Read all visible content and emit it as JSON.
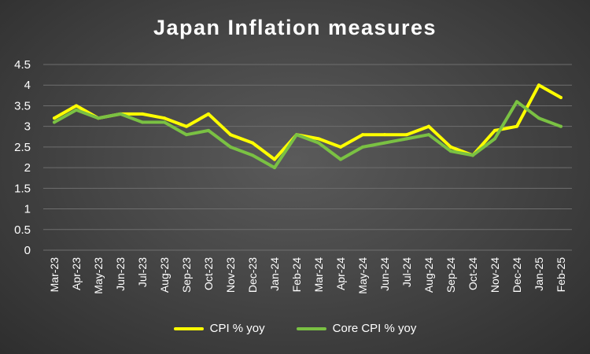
{
  "chart_data": {
    "type": "line",
    "title": "Japan Inflation measures",
    "xlabel": "",
    "ylabel": "",
    "ylim": [
      0,
      4.5
    ],
    "yticks": [
      "0",
      "0.5",
      "1",
      "1.5",
      "2",
      "2.5",
      "3",
      "3.5",
      "4",
      "4.5"
    ],
    "grid": true,
    "legend_position": "bottom",
    "categories": [
      "Mar-23",
      "Apr-23",
      "May-23",
      "Jun-23",
      "Jul-23",
      "Aug-23",
      "Sep-23",
      "Oct-23",
      "Nov-23",
      "Dec-23",
      "Jan-24",
      "Feb-24",
      "Mar-24",
      "Apr-24",
      "May-24",
      "Jun-24",
      "Jul-24",
      "Aug-24",
      "Sep-24",
      "Oct-24",
      "Nov-24",
      "Dec-24",
      "Jan-25",
      "Feb-25"
    ],
    "series": [
      {
        "name": "CPI % yoy",
        "color": "#ffff00",
        "values": [
          3.2,
          3.5,
          3.2,
          3.3,
          3.3,
          3.2,
          3.0,
          3.3,
          2.8,
          2.6,
          2.2,
          2.8,
          2.7,
          2.5,
          2.8,
          2.8,
          2.8,
          3.0,
          2.5,
          2.3,
          2.9,
          3.0,
          4.0,
          3.7
        ]
      },
      {
        "name": "Core CPI % yoy",
        "color": "#7ac143",
        "values": [
          3.1,
          3.4,
          3.2,
          3.3,
          3.1,
          3.1,
          2.8,
          2.9,
          2.5,
          2.3,
          2.0,
          2.8,
          2.6,
          2.2,
          2.5,
          2.6,
          2.7,
          2.8,
          2.4,
          2.3,
          2.7,
          3.6,
          3.2,
          3.0
        ]
      }
    ]
  }
}
